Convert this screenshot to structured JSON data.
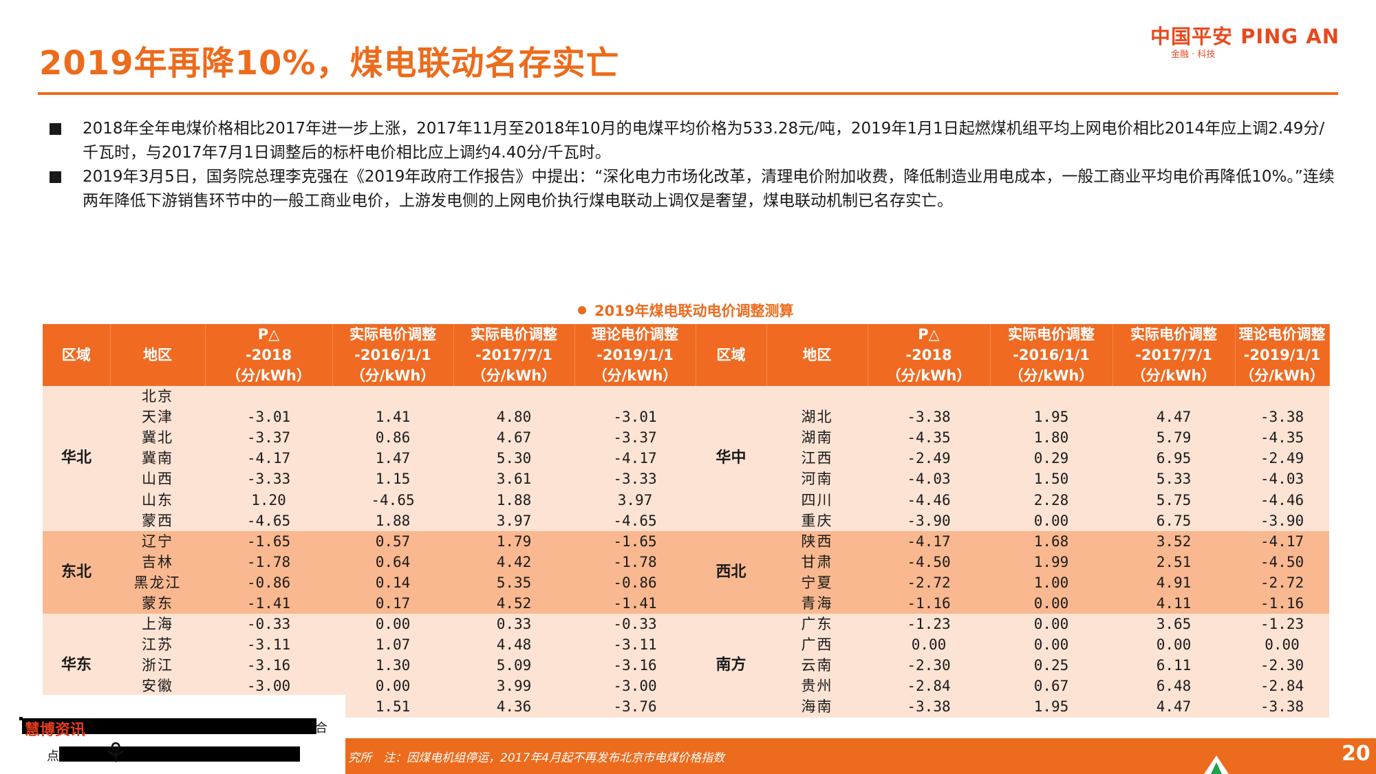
{
  "title": "2019年再降10%，煤电联动名存实亡",
  "logo": {
    "main": "中国平安 PING AN",
    "sub": "金融 · 科技"
  },
  "bullets": [
    "2018年全年电煤价格相比2017年进一步上涨，2017年11月至2018年10月的电煤平均价格为533.28元/吨，2019年1月1日起燃煤机组平均上网电价相比2014年应上调2.49分/千瓦时，与2017年7月1日调整后的标杆电价相比应上调约4.40分/千瓦时。",
    "2019年3月5日，国务院总理李克强在《2019年政府工作报告》中提出：“深化电力市场化改革，清理电价附加收费，降低制造业用电成本，一般工商业平均电价再降低10%。”连续两年降低下游销售环节中的一般工商业电价，上游发电侧的上网电价执行煤电联动上调仅是奢望，煤电联动机制已名存实亡。"
  ],
  "table": {
    "caption": "2019年煤电联动电价调整测算",
    "headers": {
      "region": "区域",
      "area": "地区",
      "p": [
        "P△",
        "-2018",
        "（分/kWh）"
      ],
      "a2016": [
        "实际电价调整",
        "-2016/1/1",
        "（分/kWh）"
      ],
      "a2017": [
        "实际电价调整",
        "-2017/7/1",
        "（分/kWh）"
      ],
      "t2019": [
        "理论电价调整",
        "-2019/1/1",
        "（分/kWh）"
      ]
    },
    "left_groups": [
      {
        "region": "华北",
        "rows": [
          {
            "area": "北京",
            "p": "",
            "a2016": "",
            "a2017": "",
            "t2019": ""
          },
          {
            "area": "天津",
            "p": "-3.01",
            "a2016": "1.41",
            "a2017": "4.80",
            "t2019": "-3.01"
          },
          {
            "area": "冀北",
            "p": "-3.37",
            "a2016": "0.86",
            "a2017": "4.67",
            "t2019": "-3.37"
          },
          {
            "area": "冀南",
            "p": "-4.17",
            "a2016": "1.47",
            "a2017": "5.30",
            "t2019": "-4.17"
          },
          {
            "area": "山西",
            "p": "-3.33",
            "a2016": "1.15",
            "a2017": "3.61",
            "t2019": "-3.33"
          },
          {
            "area": "山东",
            "p": "1.20",
            "a2016": "-4.65",
            "a2017": "1.88",
            "t2019": "3.97"
          },
          {
            "area": "蒙西",
            "p": "-4.65",
            "a2016": "1.88",
            "a2017": "3.97",
            "t2019": "-4.65"
          }
        ]
      },
      {
        "region": "东北",
        "rows": [
          {
            "area": "辽宁",
            "p": "-1.65",
            "a2016": "0.57",
            "a2017": "1.79",
            "t2019": "-1.65"
          },
          {
            "area": "吉林",
            "p": "-1.78",
            "a2016": "0.64",
            "a2017": "4.42",
            "t2019": "-1.78"
          },
          {
            "area": "黑龙江",
            "p": "-0.86",
            "a2016": "0.14",
            "a2017": "5.35",
            "t2019": "-0.86"
          },
          {
            "area": "蒙东",
            "p": "-1.41",
            "a2016": "0.17",
            "a2017": "4.52",
            "t2019": "-1.41"
          }
        ]
      },
      {
        "region": "华东",
        "rows": [
          {
            "area": "上海",
            "p": "-0.33",
            "a2016": "0.00",
            "a2017": "0.33",
            "t2019": "-0.33"
          },
          {
            "area": "江苏",
            "p": "-3.11",
            "a2016": "1.07",
            "a2017": "4.48",
            "t2019": "-3.11"
          },
          {
            "area": "浙江",
            "p": "-3.16",
            "a2016": "1.30",
            "a2017": "5.09",
            "t2019": "-3.16"
          },
          {
            "area": "安徽",
            "p": "-3.00",
            "a2016": "0.00",
            "a2017": "3.99",
            "t2019": "-3.00"
          },
          {
            "area": "",
            "p": "",
            "a2016": "1.51",
            "a2017": "4.36",
            "t2019": "-3.76"
          }
        ]
      }
    ],
    "right_groups": [
      {
        "region": "华中",
        "rows": [
          {
            "area": "",
            "p": "",
            "a2016": "",
            "a2017": "",
            "t2019": ""
          },
          {
            "area": "湖北",
            "p": "-3.38",
            "a2016": "1.95",
            "a2017": "4.47",
            "t2019": "-3.38"
          },
          {
            "area": "湖南",
            "p": "-4.35",
            "a2016": "1.80",
            "a2017": "5.79",
            "t2019": "-4.35"
          },
          {
            "area": "江西",
            "p": "-2.49",
            "a2016": "0.29",
            "a2017": "6.95",
            "t2019": "-2.49"
          },
          {
            "area": "河南",
            "p": "-4.03",
            "a2016": "1.50",
            "a2017": "5.33",
            "t2019": "-4.03"
          },
          {
            "area": "四川",
            "p": "-4.46",
            "a2016": "2.28",
            "a2017": "5.75",
            "t2019": "-4.46"
          },
          {
            "area": "重庆",
            "p": "-3.90",
            "a2016": "0.00",
            "a2017": "6.75",
            "t2019": "-3.90"
          }
        ]
      },
      {
        "region": "西北",
        "rows": [
          {
            "area": "陕西",
            "p": "-4.17",
            "a2016": "1.68",
            "a2017": "3.52",
            "t2019": "-4.17"
          },
          {
            "area": "甘肃",
            "p": "-4.50",
            "a2016": "1.99",
            "a2017": "2.51",
            "t2019": "-4.50"
          },
          {
            "area": "宁夏",
            "p": "-2.72",
            "a2016": "1.00",
            "a2017": "4.91",
            "t2019": "-2.72"
          },
          {
            "area": "青海",
            "p": "-1.16",
            "a2016": "0.00",
            "a2017": "4.11",
            "t2019": "-1.16"
          }
        ]
      },
      {
        "region": "南方",
        "rows": [
          {
            "area": "广东",
            "p": "-1.23",
            "a2016": "0.00",
            "a2017": "3.65",
            "t2019": "-1.23"
          },
          {
            "area": "广西",
            "p": "0.00",
            "a2016": "0.00",
            "a2017": "0.00",
            "t2019": "0.00"
          },
          {
            "area": "云南",
            "p": "-2.30",
            "a2016": "0.25",
            "a2017": "6.11",
            "t2019": "-2.30"
          },
          {
            "area": "贵州",
            "p": "-2.84",
            "a2016": "0.67",
            "a2017": "6.48",
            "t2019": "-2.84"
          },
          {
            "area": "海南",
            "p": "-3.38",
            "a2016": "1.95",
            "a2017": "4.47",
            "t2019": "-3.38"
          }
        ]
      }
    ]
  },
  "footer": {
    "note": "究所　注：因煤电机组停运，2017年4月起不再发布北京市电煤价格指数",
    "page": "20"
  },
  "watermark": {
    "text": "慧博资讯",
    "tail": "合",
    "pre": "点"
  },
  "colors": {
    "accent": "#ec6b1c",
    "header": "#f06a22",
    "row_light": "#fde3d4",
    "row_dark": "#f9b88f"
  }
}
